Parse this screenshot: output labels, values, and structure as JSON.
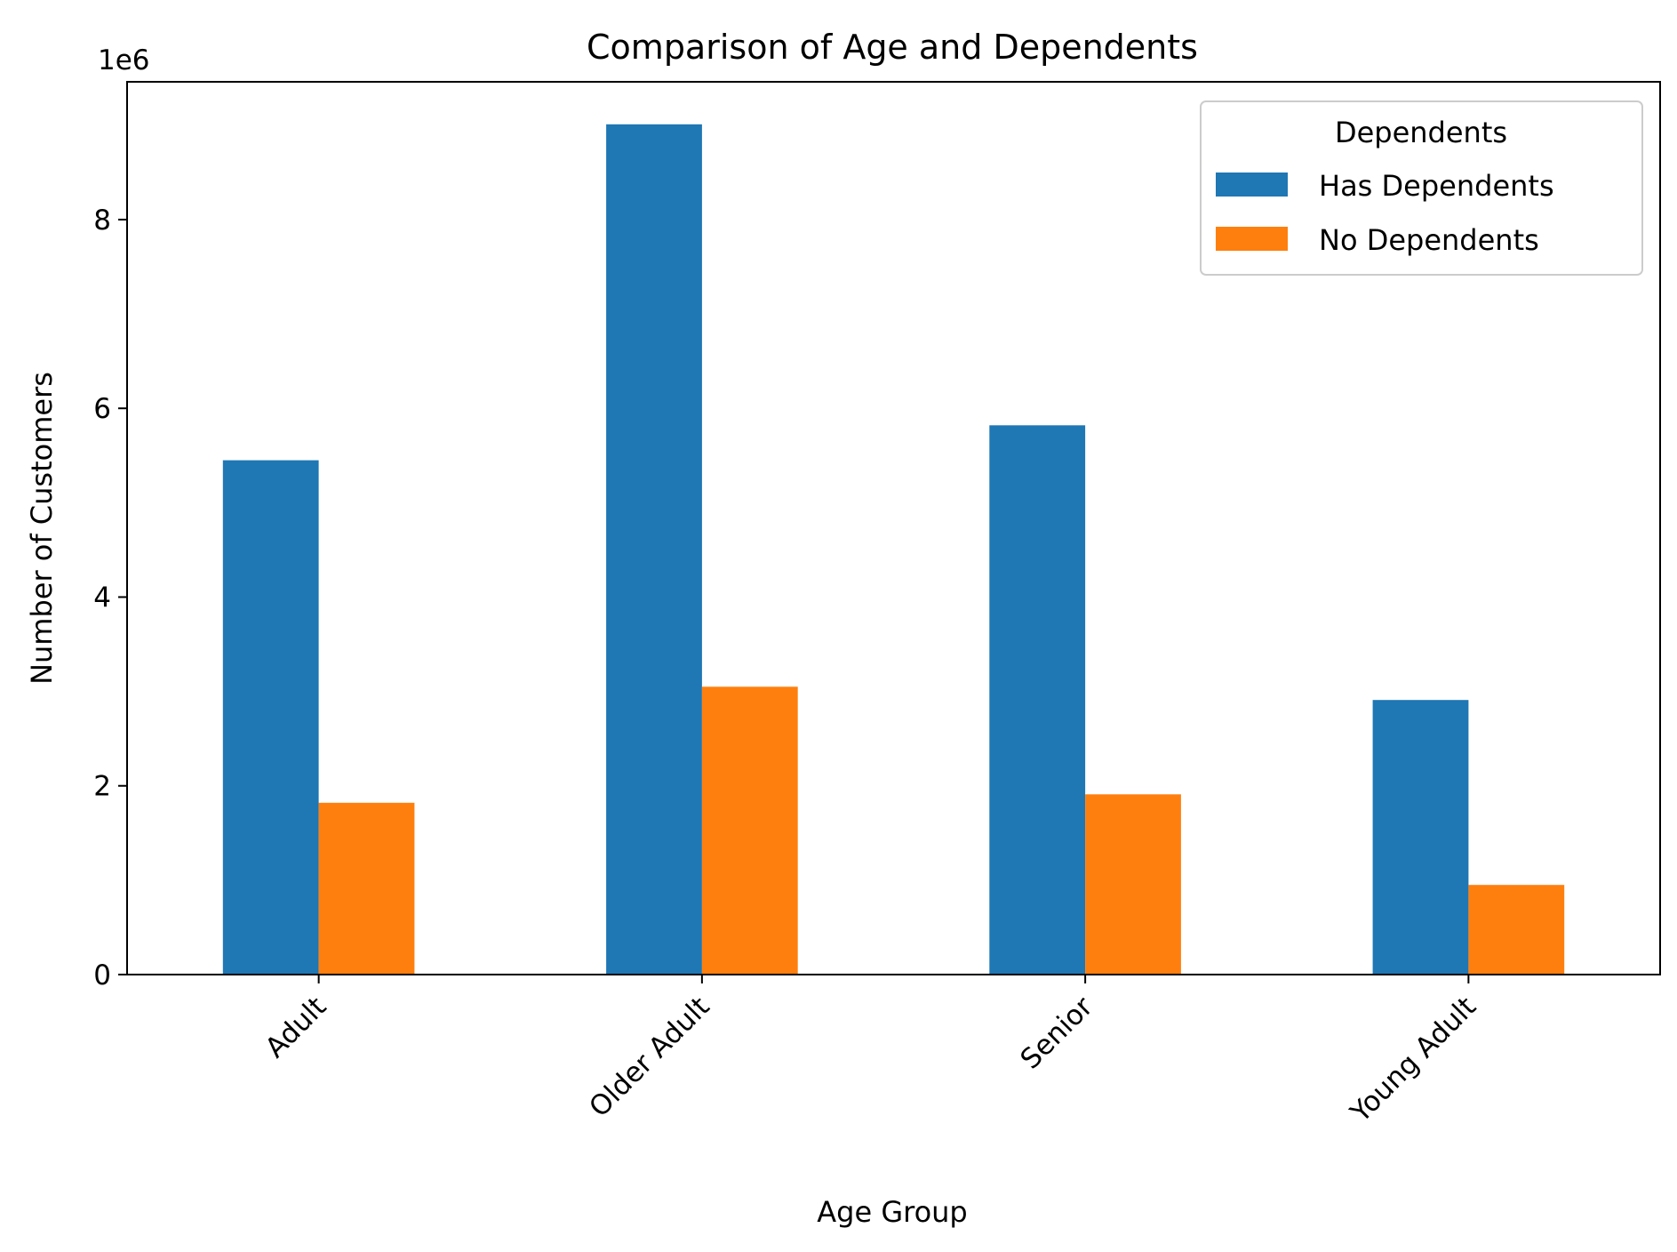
{
  "chart_data": {
    "type": "bar",
    "title": "Comparison of Age and Dependents",
    "xlabel": "Age Group",
    "ylabel": "Number of Customers",
    "y_offset_label": "1e6",
    "categories": [
      "Adult",
      "Older Adult",
      "Senior",
      "Young Adult"
    ],
    "series": [
      {
        "name": "Has Dependents",
        "color": "#1f77b4",
        "values": [
          5450000,
          9010000,
          5820000,
          2910000
        ]
      },
      {
        "name": "No Dependents",
        "color": "#ff7f0e",
        "values": [
          1820000,
          3050000,
          1910000,
          950000
        ]
      }
    ],
    "ylim": [
      0,
      9460000
    ],
    "yticks": [
      0,
      2000000,
      4000000,
      6000000,
      8000000
    ],
    "ytick_labels": [
      "0",
      "2",
      "4",
      "6",
      "8"
    ],
    "x_tick_rotation": 45,
    "grid": false,
    "legend": {
      "title": "Dependents",
      "position": "top-right"
    }
  }
}
